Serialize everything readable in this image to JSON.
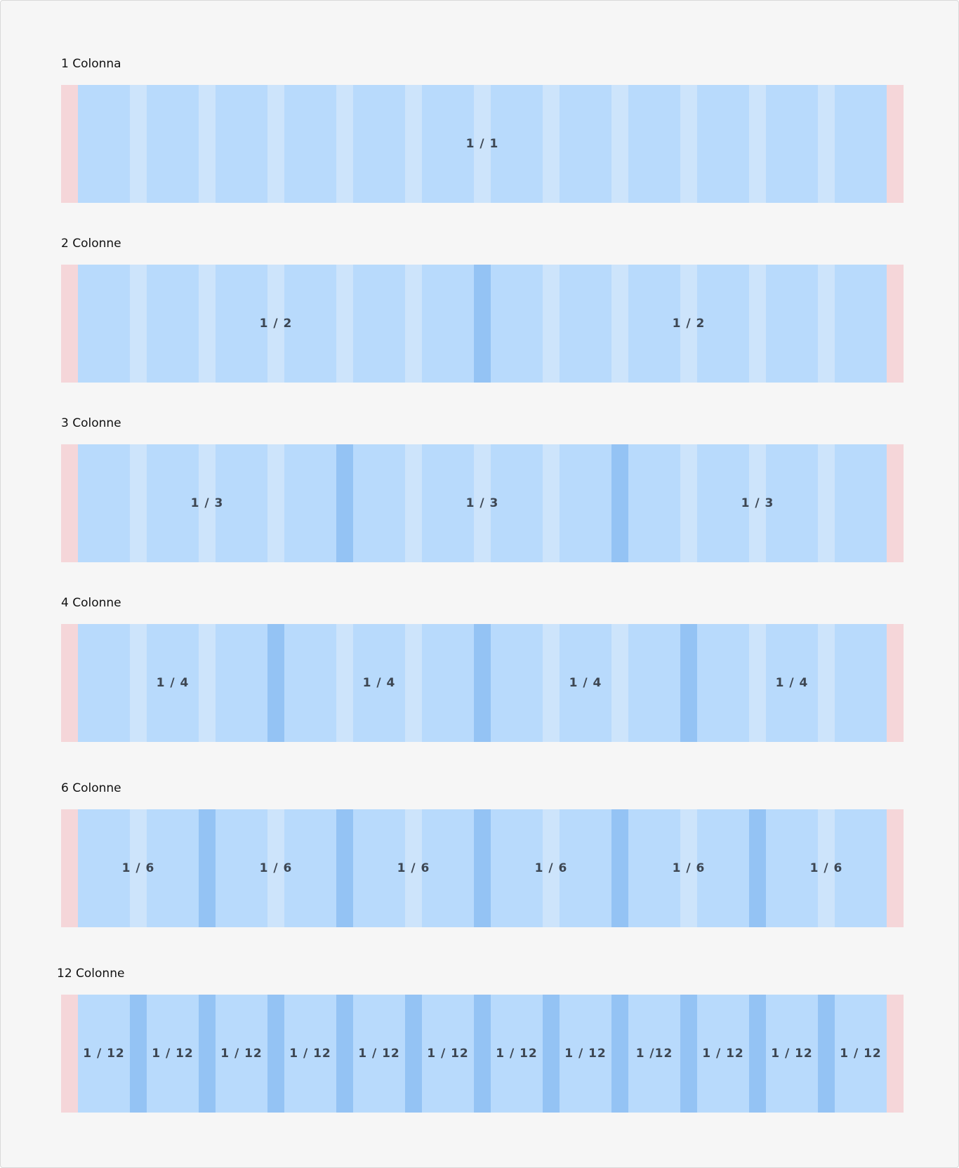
{
  "colors": {
    "margin": "#f5d6d9",
    "column": "#b8dafc",
    "inner_gutter": "#cde4fb",
    "split_gutter": "#94c3f4"
  },
  "rows": [
    {
      "title": "1 Colonna",
      "spans": 12,
      "labels": [
        "1 / 1"
      ]
    },
    {
      "title": "2 Colonne",
      "spans": 6,
      "labels": [
        "1 / 2",
        "1 / 2"
      ]
    },
    {
      "title": "3 Colonne",
      "spans": 4,
      "labels": [
        "1 / 3",
        "1 / 3",
        "1 / 3"
      ]
    },
    {
      "title": "4 Colonne",
      "spans": 3,
      "labels": [
        "1 / 4",
        "1 / 4",
        "1 / 4",
        "1 / 4"
      ]
    },
    {
      "title": "6 Colonne",
      "spans": 2,
      "labels": [
        "1 / 6",
        "1 / 6",
        "1 / 6",
        "1 / 6",
        "1 / 6",
        "1 / 6"
      ]
    },
    {
      "title": "12 Colonne",
      "spans": 1,
      "labels": [
        "1 / 12",
        "1 / 12",
        "1 / 12",
        "1 / 12",
        "1 / 12",
        "1 / 12",
        "1 / 12",
        "1 / 12",
        "1 /12",
        "1 / 12",
        "1 / 12",
        "1 / 12"
      ]
    }
  ]
}
